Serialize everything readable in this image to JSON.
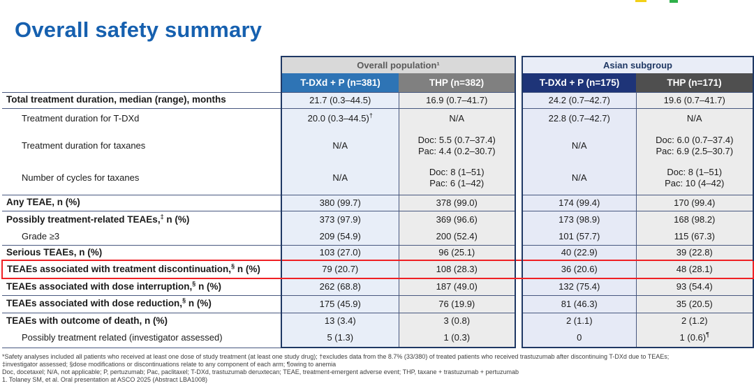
{
  "slide": {
    "title": "Overall safety summary"
  },
  "colors": {
    "title-blue": "#1660AF",
    "navy": "#1F3864",
    "line": "#47577F",
    "red": "#EF2024",
    "hdr-blue": "#2E74B5",
    "hdr-gray": "#808080",
    "hdr-navy": "#1E3478",
    "hdr-darkgray": "#4F4F4F",
    "grp-gray-bg": "#D9D9D9",
    "grp-gray-text": "#595959",
    "grp-blue-bg": "#E9EDF7",
    "cell-blue": "#E8EEF8",
    "cell-blue2": "#E6EAF6",
    "cell-gray": "#ECECEC",
    "yellow": "#F2D018",
    "green": "#2FB04A"
  },
  "table": {
    "group_headers": [
      {
        "label": "Overall population¹"
      },
      {
        "label": "Asian subgroup"
      }
    ],
    "column_headers": [
      "T-DXd + P (n=381)",
      "THP (n=382)",
      "T-DXd + P (n=175)",
      "THP (n=171)"
    ],
    "rows": [
      {
        "label": "Total treatment duration, median (range), months",
        "bold": true,
        "indent": false,
        "highlight": false,
        "values": [
          "21.7 (0.3–44.5)",
          "16.9 (0.7–41.7)",
          "24.2 (0.7–42.7)",
          "19.6 (0.7–41.7)"
        ]
      },
      {
        "label": "Treatment duration for T-DXd",
        "bold": false,
        "indent": true,
        "highlight": false,
        "values": [
          "20.0 (0.3–44.5)†",
          "N/A",
          "22.8 (0.7–42.7)",
          "N/A"
        ]
      },
      {
        "label": "Treatment duration for taxanes",
        "bold": false,
        "indent": true,
        "highlight": false,
        "values": [
          "N/A",
          "Doc: 5.5 (0.7–37.4)\nPac: 4.4 (0.2–30.7)",
          "N/A",
          "Doc: 6.0 (0.7–37.4)\nPac: 6.9 (2.5–30.7)"
        ]
      },
      {
        "label": "Number of cycles for taxanes",
        "bold": false,
        "indent": true,
        "highlight": false,
        "values": [
          "N/A",
          "Doc: 8 (1–51)\nPac: 6 (1–42)",
          "N/A",
          "Doc: 8 (1–51)\nPac: 10 (4–42)"
        ]
      },
      {
        "label": "Any TEAE, n (%)",
        "bold": true,
        "indent": false,
        "highlight": false,
        "values": [
          "380 (99.7)",
          "378 (99.0)",
          "174 (99.4)",
          "170 (99.4)"
        ]
      },
      {
        "label": "Possibly treatment-related TEAEs,‡ n (%)",
        "bold": true,
        "indent": false,
        "highlight": false,
        "values": [
          "373 (97.9)",
          "369 (96.6)",
          "173 (98.9)",
          "168 (98.2)"
        ]
      },
      {
        "label": "Grade ≥3",
        "bold": false,
        "indent": true,
        "highlight": false,
        "values": [
          "209 (54.9)",
          "200 (52.4)",
          "101 (57.7)",
          "115 (67.3)"
        ]
      },
      {
        "label": "Serious TEAEs, n (%)",
        "bold": true,
        "indent": false,
        "highlight": false,
        "values": [
          "103 (27.0)",
          "96 (25.1)",
          "40 (22.9)",
          "39 (22.8)"
        ]
      },
      {
        "label": "TEAEs associated with treatment discontinuation,§ n (%)",
        "bold": true,
        "indent": false,
        "highlight": true,
        "values": [
          "79 (20.7)",
          "108 (28.3)",
          "36 (20.6)",
          "48 (28.1)"
        ]
      },
      {
        "label": "TEAEs associated with dose interruption,§ n (%)",
        "bold": true,
        "indent": false,
        "highlight": false,
        "values": [
          "262 (68.8)",
          "187 (49.0)",
          "132 (75.4)",
          "93 (54.4)"
        ]
      },
      {
        "label": "TEAEs associated with dose reduction,§ n (%)",
        "bold": true,
        "indent": false,
        "highlight": false,
        "values": [
          "175 (45.9)",
          "76 (19.9)",
          "81 (46.3)",
          "35 (20.5)"
        ]
      },
      {
        "label": "TEAEs with outcome of death, n (%)",
        "bold": true,
        "indent": false,
        "highlight": false,
        "values": [
          "13 (3.4)",
          "3 (0.8)",
          "2 (1.1)",
          "2 (1.2)"
        ]
      },
      {
        "label": "Possibly treatment related (investigator assessed)",
        "bold": false,
        "indent": true,
        "highlight": false,
        "values": [
          "5 (1.3)",
          "1 (0.3)",
          "0",
          "1 (0.6)¶"
        ]
      }
    ]
  },
  "footnotes": [
    "*Safety analyses included all patients who received at least one dose of study treatment (at least one study drug); †excludes data from the 8.7% (33/380) of treated patients who received trastuzumab after discontinuing T-DXd due to TEAEs;",
    "‡investigator assessed; §dose modifications or discontinuations relate to any component of each arm; ¶owing to anemia",
    "Doc, docetaxel; N/A, not applicable; P, pertuzumab; Pac, paclitaxel; T-DXd, trastuzumab deruxtecan; TEAE, treatment-emergent adverse event; THP, taxane + trastuzumab + pertuzumab",
    "1. Tolaney SM, et al. Oral presentation at ASCO 2025 (Abstract LBA1008)"
  ]
}
